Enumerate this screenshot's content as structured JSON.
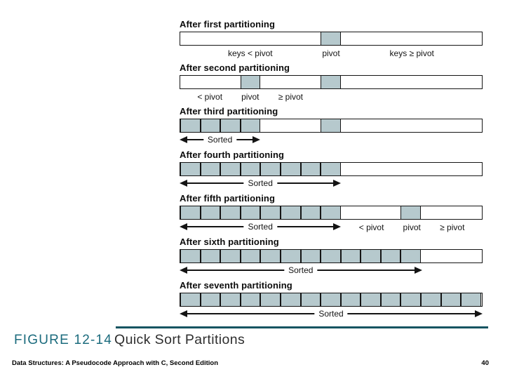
{
  "figure": {
    "label": "FIGURE 12-14",
    "title": "Quick Sort Partitions",
    "accent_color": "#1b6b7d",
    "rule_color": "#155461"
  },
  "footer": {
    "book": "Data Structures: A Pseudocode Approach with C, Second Edition",
    "page": "40"
  },
  "diagram": {
    "cell_fill": "#b6c9cd",
    "border_color": "#151515",
    "total_cells": 15,
    "sorted_label": "Sorted",
    "sections": [
      {
        "heading": "After first partitioning",
        "shaded_cells": [
          7
        ],
        "labels": [
          {
            "text": "keys < pivot",
            "from": 0,
            "to": 6
          },
          {
            "text": "pivot",
            "from": 7,
            "to": 7
          },
          {
            "text": "keys ≥ pivot",
            "from": 8,
            "to": 14
          }
        ]
      },
      {
        "heading": "After second partitioning",
        "shaded_cells": [
          3,
          7
        ],
        "labels": [
          {
            "text": "< pivot",
            "from": 0,
            "to": 2
          },
          {
            "text": "pivot",
            "from": 3,
            "to": 3
          },
          {
            "text": "≥ pivot",
            "from": 4,
            "to": 6
          }
        ]
      },
      {
        "heading": "After third partitioning",
        "shaded_cells": [
          0,
          1,
          2,
          3,
          7
        ],
        "sorted": {
          "from": 0,
          "to": 3
        }
      },
      {
        "heading": "After fourth partitioning",
        "shaded_cells": [
          0,
          1,
          2,
          3,
          4,
          5,
          6,
          7
        ],
        "sorted": {
          "from": 0,
          "to": 7
        }
      },
      {
        "heading": "After fifth partitioning",
        "shaded_cells": [
          0,
          1,
          2,
          3,
          4,
          5,
          6,
          7,
          11
        ],
        "sorted": {
          "from": 0,
          "to": 7
        },
        "labels": [
          {
            "text": "< pivot",
            "from": 8,
            "to": 10
          },
          {
            "text": "pivot",
            "from": 11,
            "to": 11
          },
          {
            "text": "≥ pivot",
            "from": 12,
            "to": 14
          }
        ]
      },
      {
        "heading": "After sixth partitioning",
        "shaded_cells": [
          0,
          1,
          2,
          3,
          4,
          5,
          6,
          7,
          8,
          9,
          10,
          11
        ],
        "sorted": {
          "from": 0,
          "to": 11
        }
      },
      {
        "heading": "After seventh partitioning",
        "shaded_cells": [
          0,
          1,
          2,
          3,
          4,
          5,
          6,
          7,
          8,
          9,
          10,
          11,
          12,
          13,
          14
        ],
        "sorted": {
          "from": 0,
          "to": 14
        }
      }
    ]
  }
}
